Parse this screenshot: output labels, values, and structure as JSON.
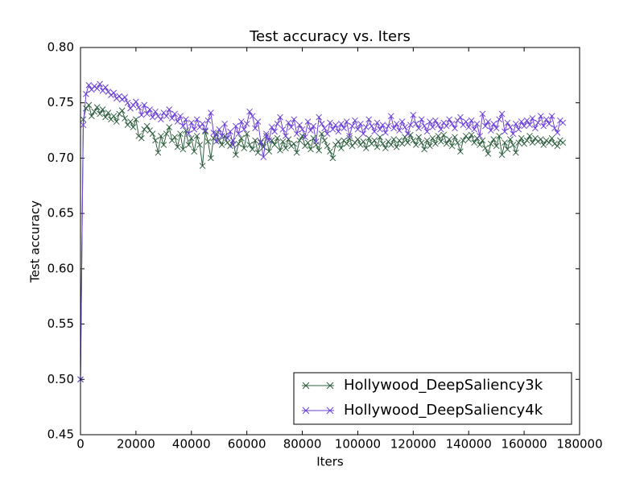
{
  "chart_data": {
    "type": "line",
    "title": "Test accuracy  vs. Iters",
    "x_label": "Iters",
    "y_label": "Test accuracy",
    "x": [
      0,
      1000,
      2000,
      3000,
      4000,
      5000,
      6000,
      7000,
      8000,
      9000,
      10000,
      11000,
      12000,
      13000,
      14000,
      15000,
      16000,
      17000,
      18000,
      19000,
      20000,
      21000,
      22000,
      23000,
      24000,
      25000,
      26000,
      27000,
      28000,
      29000,
      30000,
      31000,
      32000,
      33000,
      34000,
      35000,
      36000,
      37000,
      38000,
      39000,
      40000,
      41000,
      42000,
      43000,
      44000,
      45000,
      46000,
      47000,
      48000,
      49000,
      50000,
      51000,
      52000,
      53000,
      54000,
      55000,
      56000,
      57000,
      58000,
      59000,
      60000,
      61000,
      62000,
      63000,
      64000,
      65000,
      66000,
      67000,
      68000,
      69000,
      70000,
      71000,
      72000,
      73000,
      74000,
      75000,
      76000,
      77000,
      78000,
      79000,
      80000,
      81000,
      82000,
      83000,
      84000,
      85000,
      86000,
      87000,
      88000,
      89000,
      90000,
      91000,
      92000,
      93000,
      94000,
      95000,
      96000,
      97000,
      98000,
      99000,
      100000,
      101000,
      102000,
      103000,
      104000,
      105000,
      106000,
      107000,
      108000,
      109000,
      110000,
      111000,
      112000,
      113000,
      114000,
      115000,
      116000,
      117000,
      118000,
      119000,
      120000,
      121000,
      122000,
      123000,
      124000,
      125000,
      126000,
      127000,
      128000,
      129000,
      130000,
      131000,
      132000,
      133000,
      134000,
      135000,
      136000,
      137000,
      138000,
      139000,
      140000,
      141000,
      142000,
      143000,
      144000,
      145000,
      146000,
      147000,
      148000,
      149000,
      150000,
      151000,
      152000,
      153000,
      154000,
      155000,
      156000,
      157000,
      158000,
      159000,
      160000,
      161000,
      162000,
      163000,
      164000,
      165000,
      166000,
      167000,
      168000,
      169000,
      170000,
      171000,
      172000,
      173000,
      174000
    ],
    "series": [
      {
        "name": "Hollywood_DeepSaliency3k",
        "color": "#2f5f3f",
        "values": [
          0.5,
          0.735,
          0.745,
          0.748,
          0.738,
          0.742,
          0.746,
          0.74,
          0.744,
          0.737,
          0.741,
          0.735,
          0.738,
          0.733,
          0.74,
          0.743,
          0.736,
          0.73,
          0.733,
          0.728,
          0.735,
          0.72,
          0.718,
          0.726,
          0.729,
          0.725,
          0.722,
          0.716,
          0.705,
          0.72,
          0.712,
          0.722,
          0.728,
          0.716,
          0.719,
          0.71,
          0.722,
          0.708,
          0.725,
          0.712,
          0.718,
          0.706,
          0.72,
          0.712,
          0.693,
          0.724,
          0.715,
          0.7,
          0.718,
          0.722,
          0.716,
          0.712,
          0.72,
          0.714,
          0.711,
          0.716,
          0.703,
          0.713,
          0.718,
          0.709,
          0.722,
          0.712,
          0.708,
          0.716,
          0.705,
          0.714,
          0.71,
          0.72,
          0.706,
          0.716,
          0.712,
          0.718,
          0.707,
          0.715,
          0.709,
          0.717,
          0.711,
          0.713,
          0.705,
          0.716,
          0.72,
          0.711,
          0.714,
          0.708,
          0.718,
          0.712,
          0.707,
          0.722,
          0.716,
          0.711,
          0.706,
          0.7,
          0.712,
          0.715,
          0.709,
          0.716,
          0.713,
          0.718,
          0.711,
          0.714,
          0.717,
          0.712,
          0.715,
          0.709,
          0.718,
          0.713,
          0.716,
          0.71,
          0.719,
          0.713,
          0.709,
          0.715,
          0.712,
          0.717,
          0.71,
          0.716,
          0.713,
          0.719,
          0.714,
          0.721,
          0.716,
          0.712,
          0.719,
          0.714,
          0.708,
          0.716,
          0.711,
          0.718,
          0.713,
          0.72,
          0.715,
          0.721,
          0.713,
          0.717,
          0.711,
          0.719,
          0.714,
          0.706,
          0.716,
          0.72,
          0.717,
          0.721,
          0.714,
          0.718,
          0.712,
          0.716,
          0.709,
          0.704,
          0.713,
          0.717,
          0.711,
          0.72,
          0.703,
          0.714,
          0.708,
          0.717,
          0.712,
          0.705,
          0.714,
          0.718,
          0.713,
          0.716,
          0.72,
          0.714,
          0.718,
          0.715,
          0.717,
          0.712,
          0.716,
          0.714,
          0.718,
          0.713,
          0.711,
          0.716,
          0.714
        ]
      },
      {
        "name": "Hollywood_DeepSaliency4k",
        "color": "#6a3fd6",
        "values": [
          0.5,
          0.73,
          0.758,
          0.766,
          0.762,
          0.765,
          0.763,
          0.767,
          0.761,
          0.764,
          0.76,
          0.757,
          0.759,
          0.754,
          0.756,
          0.753,
          0.755,
          0.75,
          0.745,
          0.748,
          0.751,
          0.746,
          0.739,
          0.748,
          0.74,
          0.744,
          0.737,
          0.742,
          0.738,
          0.735,
          0.741,
          0.738,
          0.744,
          0.736,
          0.74,
          0.733,
          0.738,
          0.729,
          0.735,
          0.722,
          0.732,
          0.726,
          0.735,
          0.728,
          0.731,
          0.725,
          0.734,
          0.741,
          0.723,
          0.715,
          0.726,
          0.72,
          0.731,
          0.718,
          0.724,
          0.712,
          0.729,
          0.722,
          0.733,
          0.726,
          0.731,
          0.742,
          0.738,
          0.727,
          0.733,
          0.715,
          0.701,
          0.722,
          0.716,
          0.728,
          0.724,
          0.731,
          0.737,
          0.726,
          0.72,
          0.732,
          0.728,
          0.735,
          0.722,
          0.73,
          0.726,
          0.719,
          0.733,
          0.725,
          0.729,
          0.715,
          0.737,
          0.731,
          0.727,
          0.722,
          0.732,
          0.726,
          0.73,
          0.724,
          0.731,
          0.727,
          0.733,
          0.72,
          0.729,
          0.734,
          0.726,
          0.731,
          0.722,
          0.728,
          0.735,
          0.729,
          0.724,
          0.732,
          0.726,
          0.73,
          0.723,
          0.729,
          0.738,
          0.727,
          0.731,
          0.725,
          0.733,
          0.728,
          0.722,
          0.73,
          0.739,
          0.731,
          0.727,
          0.735,
          0.729,
          0.724,
          0.733,
          0.728,
          0.734,
          0.73,
          0.726,
          0.732,
          0.729,
          0.735,
          0.731,
          0.727,
          0.734,
          0.737,
          0.73,
          0.733,
          0.728,
          0.734,
          0.726,
          0.731,
          0.72,
          0.74,
          0.729,
          0.733,
          0.725,
          0.731,
          0.727,
          0.735,
          0.74,
          0.724,
          0.732,
          0.728,
          0.722,
          0.731,
          0.726,
          0.733,
          0.729,
          0.734,
          0.73,
          0.736,
          0.727,
          0.732,
          0.738,
          0.729,
          0.735,
          0.731,
          0.738,
          0.727,
          0.723,
          0.734,
          0.732
        ]
      }
    ],
    "xlim": [
      0,
      180000
    ],
    "xticks": [
      0,
      20000,
      40000,
      60000,
      80000,
      100000,
      120000,
      140000,
      160000,
      180000
    ],
    "ylim": [
      0.45,
      0.8
    ],
    "yticks": [
      0.45,
      {
        "value": 0.5,
        "label": "0.50"
      },
      0.55,
      {
        "value": 0.6,
        "label": "0.60"
      },
      0.65,
      {
        "value": 0.7,
        "label": "0.70"
      },
      0.75,
      {
        "value": 0.8,
        "label": "0.80"
      }
    ],
    "legend": "lower right",
    "grid": false
  }
}
